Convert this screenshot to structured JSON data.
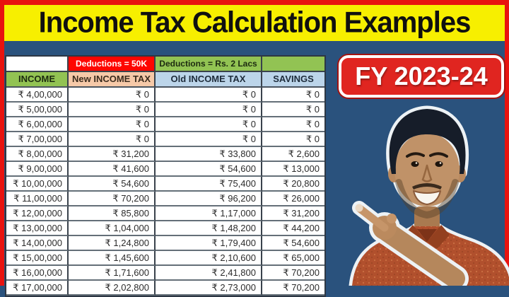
{
  "banner": {
    "title": "Income Tax Calculation Examples",
    "background": "#F7EF00",
    "text_color": "#101010"
  },
  "frame_color": "#E8130F",
  "page_background": "#2A527D",
  "badge": {
    "label": "FY 2023-24",
    "background": "#E02520",
    "text_color": "#FFFFFF"
  },
  "table": {
    "deduction_row": {
      "new_tax_deduction": "Deductions = 50K",
      "old_tax_deduction": "Deductions = Rs. 2 Lacs"
    },
    "header_colors": {
      "income": "#92C353",
      "new_income_tax": "#F6C9A8",
      "old_income_tax": "#BCD5EA",
      "savings": "#BCD5EA",
      "deductions_new_bg": "#FE0600",
      "deductions_old_bg": "#92C353"
    }
  },
  "chart_data": {
    "type": "table",
    "title": "Income Tax Calculation Examples",
    "fiscal_year": "FY 2023-24",
    "annotations": {
      "new_regime": "Deductions = 50K",
      "old_regime": "Deductions = Rs. 2 Lacs"
    },
    "columns": [
      "INCOME",
      "New INCOME TAX",
      "Old INCOME TAX",
      "SAVINGS"
    ],
    "rows": [
      [
        "₹ 4,00,000",
        "₹ 0",
        "₹ 0",
        "₹ 0"
      ],
      [
        "₹ 5,00,000",
        "₹ 0",
        "₹ 0",
        "₹ 0"
      ],
      [
        "₹ 6,00,000",
        "₹ 0",
        "₹ 0",
        "₹ 0"
      ],
      [
        "₹ 7,00,000",
        "₹ 0",
        "₹ 0",
        "₹ 0"
      ],
      [
        "₹ 8,00,000",
        "₹ 31,200",
        "₹ 33,800",
        "₹ 2,600"
      ],
      [
        "₹ 9,00,000",
        "₹ 41,600",
        "₹ 54,600",
        "₹ 13,000"
      ],
      [
        "₹ 10,00,000",
        "₹ 54,600",
        "₹ 75,400",
        "₹ 20,800"
      ],
      [
        "₹ 11,00,000",
        "₹ 70,200",
        "₹ 96,200",
        "₹ 26,000"
      ],
      [
        "₹ 12,00,000",
        "₹ 85,800",
        "₹ 1,17,000",
        "₹ 31,200"
      ],
      [
        "₹ 13,00,000",
        "₹ 1,04,000",
        "₹ 1,48,200",
        "₹ 44,200"
      ],
      [
        "₹ 14,00,000",
        "₹ 1,24,800",
        "₹ 1,79,400",
        "₹ 54,600"
      ],
      [
        "₹ 15,00,000",
        "₹ 1,45,600",
        "₹ 2,10,600",
        "₹ 65,000"
      ],
      [
        "₹ 16,00,000",
        "₹ 1,71,600",
        "₹ 2,41,800",
        "₹ 70,200"
      ],
      [
        "₹ 17,00,000",
        "₹ 2,02,800",
        "₹ 2,73,000",
        "₹ 70,200"
      ]
    ]
  }
}
